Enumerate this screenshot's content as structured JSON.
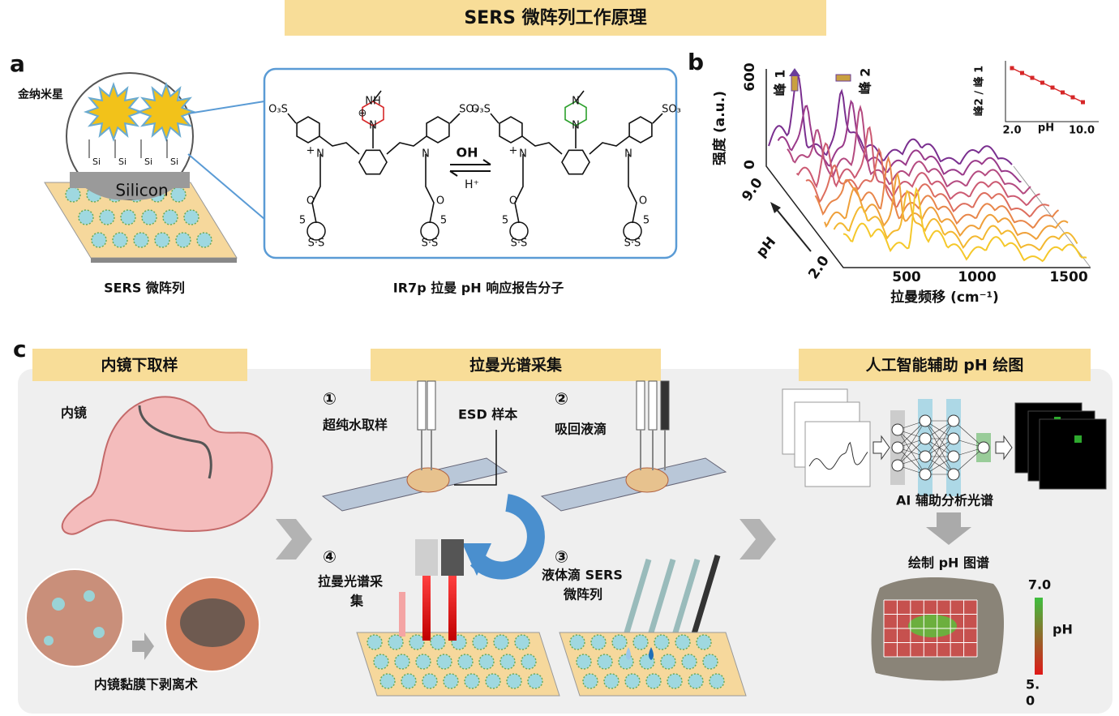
{
  "header": {
    "title": "SERS 微阵列工作原理"
  },
  "panel_a": {
    "label": "a",
    "nanostar": "金纳米星",
    "silicon": "Silicon",
    "linker": [
      "Si",
      "Si",
      "Si",
      "Si"
    ],
    "array_caption": "SERS 微阵列",
    "molecule_left": {
      "so3_left": "O₃S",
      "so3_right": "SO₃",
      "n_left": "N",
      "charge": "+",
      "n_right": "N",
      "piperazine_top": "NH",
      "piperazine_charge": "⊕",
      "piperazine_bottom": "N",
      "ester": "O",
      "chain": "5",
      "disulfide": "S·S"
    },
    "molecule_right": {
      "so3_left": "O₃S",
      "so3_right": "SO₃",
      "n_left": "N",
      "charge": "+",
      "n_right": "N",
      "piperazine_top": "N",
      "piperazine_bottom": "N",
      "ester": "O",
      "chain": "5",
      "disulfide": "S·S"
    },
    "forward": "OH",
    "reverse": "H⁺",
    "molecule_caption": "IR7p 拉曼 pH 响应报告分子"
  },
  "panel_b": {
    "label": "b",
    "y_label": "强度 (a.u.)",
    "y_ticks": [
      "600",
      "0"
    ],
    "depth_label": "pH",
    "depth_ticks": [
      "9.0",
      "2.0"
    ],
    "x_label": "拉曼频移 (cm⁻¹)",
    "x_ticks": [
      "500",
      "1000",
      "1500"
    ],
    "peak_1": "峰 1",
    "peak_2": "峰 2",
    "inset": {
      "y_label": "峰2 / 峰 1",
      "x_label": "pH",
      "x_ticks": [
        "2.0",
        "10.0"
      ]
    }
  },
  "panel_c": {
    "label": "c",
    "sampling": {
      "title": "内镜下取样",
      "endoscope": "内镜",
      "esd": "内镜黏膜下剥离术"
    },
    "acquisition": {
      "title": "拉曼光谱采集",
      "step_1": {
        "number": "①",
        "text": "超纯水取样"
      },
      "sample": "ESD 样本",
      "step_2": {
        "number": "②",
        "text": "吸回液滴"
      },
      "step_3": {
        "number": "③",
        "lines": [
          "液体滴 SERS",
          "微阵列"
        ]
      },
      "step_4": {
        "number": "④",
        "lines": [
          "拉曼光谱采",
          "集"
        ]
      }
    },
    "mapping": {
      "title": "人工智能辅助 pH 绘图",
      "analysis": "AI 辅助分析光谱",
      "map_title": "绘制 pH 图谱",
      "colorbar_label": "pH",
      "colorbar_top": "7.0",
      "colorbar_bottom": [
        "5.",
        "0"
      ]
    }
  }
}
